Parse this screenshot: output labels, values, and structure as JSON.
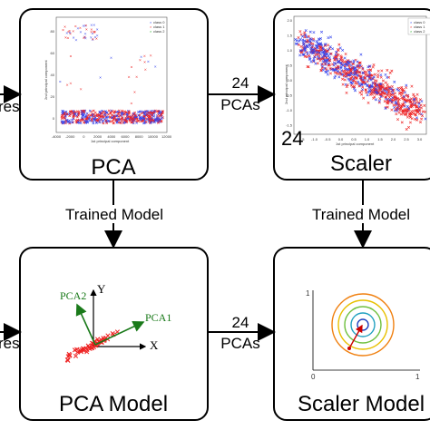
{
  "boxes": {
    "pca": {
      "title": "PCA"
    },
    "scaler": {
      "title": "Scaler",
      "overlay_number": "24"
    },
    "pca_model": {
      "title": "PCA Model",
      "axis_y": "Y",
      "axis_x": "X",
      "vec1": "PCA1",
      "vec2": "PCA2"
    },
    "scaler_model": {
      "title": "Scaler Model",
      "tick_y": "1",
      "tick_x": "1",
      "origin": "0"
    }
  },
  "edges": {
    "left_top_fragment": "res",
    "left_bottom_fragment": "res",
    "pca_to_scaler_line1": "24",
    "pca_to_scaler_line2": "PCAs",
    "pcamodel_to_scalermodel_line1": "24",
    "pcamodel_to_scalermodel_line2": "PCAs",
    "pca_down": "Trained Model",
    "scaler_down": "Trained Model"
  },
  "scatter_pca": {
    "legend": [
      "class 0",
      "class 1",
      "class 2"
    ],
    "xlabel": "1st principal component",
    "ylabel": "2nd principal component",
    "xticks": [
      "-4000",
      "-2000",
      "0",
      "2000",
      "4000",
      "6000",
      "8000",
      "10000",
      "12000"
    ],
    "yticks": [
      "0",
      "20",
      "40",
      "60",
      "80"
    ]
  },
  "scatter_scaler": {
    "legend": [
      "class 0",
      "class 1",
      "class 2"
    ],
    "xlabel": "1st principal component",
    "ylabel": "2nd principal component",
    "xticks": [
      "-1.5",
      "-1.0",
      "-0.5",
      "0.0",
      "0.5",
      "1.0",
      "1.5",
      "2.0",
      "2.5",
      "3.0"
    ],
    "yticks": [
      "2.0",
      "1.5",
      "1.0",
      "0.5",
      "0.0",
      "-0.5",
      "-1.0",
      "-1.5"
    ]
  },
  "colors": {
    "class0": "#3344ee",
    "class1": "#ee2222",
    "class2": "#22aa22",
    "pca_vector": "#1a7a1a",
    "point": "#ee2222"
  }
}
